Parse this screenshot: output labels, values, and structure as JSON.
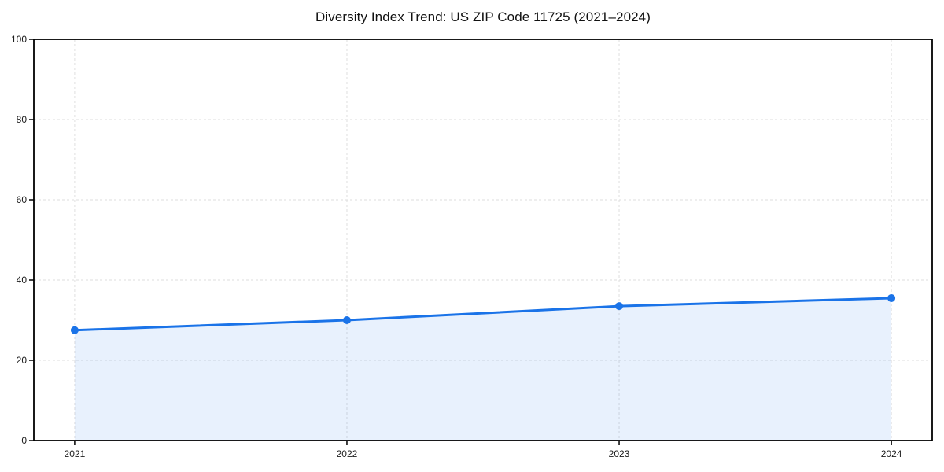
{
  "page": {
    "background": "#ffffff"
  },
  "chart_data": {
    "type": "area",
    "title": "Diversity Index Trend: US ZIP Code 11725 (2021–2024)",
    "x": [
      2021,
      2022,
      2023,
      2024
    ],
    "categories": [
      "2021",
      "2022",
      "2023",
      "2024"
    ],
    "series": [
      {
        "name": "Diversity Index",
        "values": [
          27.5,
          30,
          33.5,
          35.5
        ]
      }
    ],
    "xlabel": "",
    "ylabel": "",
    "xlim": [
      2020.85,
      2024.15
    ],
    "ylim": [
      0,
      100
    ],
    "yticks": [
      0,
      20,
      40,
      60,
      80,
      100
    ],
    "grid": true,
    "grid_style": "dashed",
    "legend_position": "none",
    "marker": "circle",
    "colors": {
      "line": "#1a73e8",
      "marker": "#1a73e8",
      "fill": "#1a73e8",
      "fill_opacity": 0.1,
      "grid": "#dedede",
      "axis": "#000000",
      "text": "#1a1a1a"
    }
  }
}
